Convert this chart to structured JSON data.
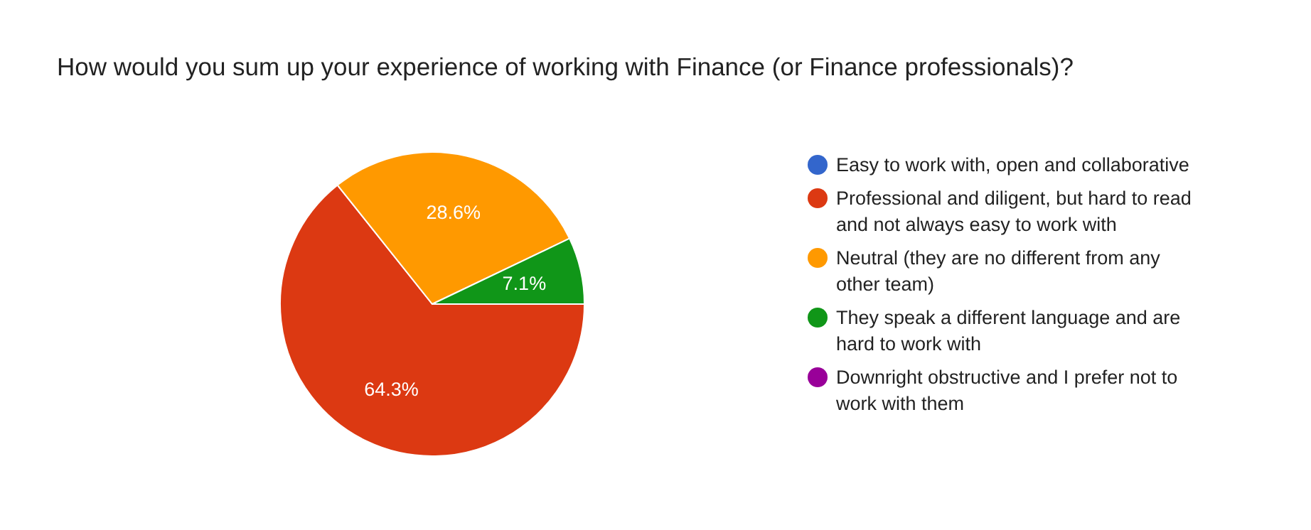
{
  "chart_data": {
    "type": "pie",
    "title": "How would you sum up your experience of working with Finance (or Finance professionals)?",
    "categories": [
      "Easy to work with, open and collaborative",
      "Professional and diligent, but hard to read and not always easy to work with",
      "Neutral (they are no different from any other team)",
      "They speak a different language and are hard to work with",
      "Downright obstructive and I prefer not to work with them"
    ],
    "values": [
      0,
      64.3,
      28.6,
      7.1,
      0
    ],
    "value_labels": [
      null,
      "64.3%",
      "28.6%",
      "7.1%",
      null
    ],
    "colors": [
      "#3366cc",
      "#dc3912",
      "#ff9900",
      "#109618",
      "#990099"
    ],
    "legend": "right"
  }
}
